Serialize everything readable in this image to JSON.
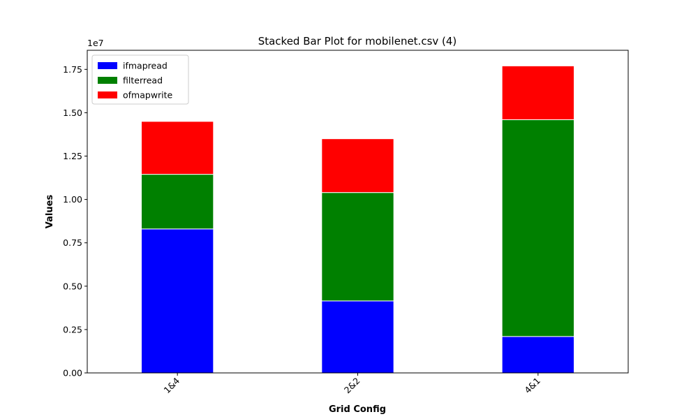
{
  "chart_data": {
    "type": "bar",
    "stacked": true,
    "title": "Stacked Bar Plot for mobilenet.csv (4)",
    "xlabel": "Grid Config",
    "ylabel": "Values",
    "y_scale_label": "1e7",
    "categories": [
      "1&4",
      "2&2",
      "4&1"
    ],
    "series": [
      {
        "name": "ifmapread",
        "color": "#0000ff",
        "values": [
          8300000,
          4150000,
          2100000
        ]
      },
      {
        "name": "filterread",
        "color": "#008000",
        "values": [
          3150000,
          6250000,
          12500000
        ]
      },
      {
        "name": "ofmapwrite",
        "color": "#ff0000",
        "values": [
          3050000,
          3100000,
          3100000
        ]
      }
    ],
    "ylim": [
      0,
      18600000
    ],
    "yticks": [
      0,
      2500000,
      5000000,
      7500000,
      10000000,
      12500000,
      15000000,
      17500000
    ],
    "ytick_labels": [
      "0.00",
      "0.25",
      "0.50",
      "0.75",
      "1.00",
      "1.25",
      "1.50",
      "1.75"
    ],
    "grid": false,
    "legend_position": "top-left"
  }
}
